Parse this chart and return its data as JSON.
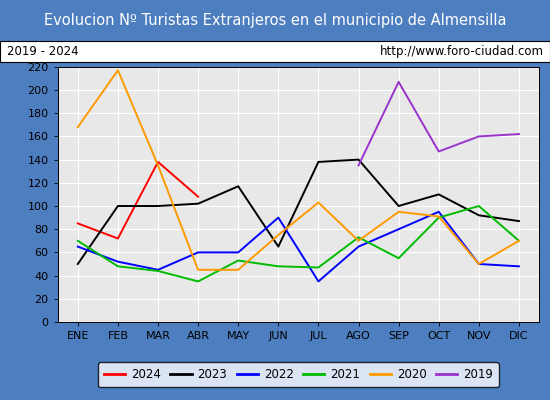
{
  "title": "Evolucion Nº Turistas Extranjeros en el municipio de Almensilla",
  "subtitle_left": "2019 - 2024",
  "subtitle_right": "http://www.foro-ciudad.com",
  "months": [
    "ENE",
    "FEB",
    "MAR",
    "ABR",
    "MAY",
    "JUN",
    "JUL",
    "AGO",
    "SEP",
    "OCT",
    "NOV",
    "DIC"
  ],
  "series": {
    "2024": {
      "color": "#ff0000",
      "data": [
        85,
        72,
        138,
        108,
        null,
        null,
        null,
        null,
        null,
        null,
        null,
        null
      ]
    },
    "2023": {
      "color": "#000000",
      "data": [
        50,
        100,
        100,
        102,
        117,
        65,
        138,
        140,
        100,
        110,
        92,
        87
      ]
    },
    "2022": {
      "color": "#0000ff",
      "data": [
        65,
        52,
        45,
        60,
        60,
        90,
        35,
        65,
        80,
        95,
        50,
        48
      ]
    },
    "2021": {
      "color": "#00bb00",
      "data": [
        70,
        48,
        44,
        35,
        53,
        48,
        47,
        73,
        55,
        90,
        100,
        70
      ]
    },
    "2020": {
      "color": "#ff9900",
      "data": [
        168,
        217,
        135,
        45,
        45,
        75,
        103,
        70,
        95,
        91,
        50,
        70
      ]
    },
    "2019": {
      "color": "#9933cc",
      "data": [
        null,
        null,
        null,
        null,
        null,
        null,
        null,
        135,
        207,
        147,
        160,
        162
      ]
    }
  },
  "ylim": [
    0,
    220
  ],
  "yticks": [
    0,
    20,
    40,
    60,
    80,
    100,
    120,
    140,
    160,
    180,
    200,
    220
  ],
  "title_bg_color": "#4d7ebf",
  "title_text_color": "#ffffff",
  "plot_bg_color": "#e8e8e8",
  "grid_color": "#ffffff",
  "border_color": "#000000",
  "outer_bg_color": "#4d7ebf",
  "title_fontsize": 10.5,
  "subtitle_fontsize": 8.5,
  "axis_fontsize": 8,
  "legend_fontsize": 8.5,
  "legend_order": [
    "2024",
    "2023",
    "2022",
    "2021",
    "2020",
    "2019"
  ]
}
